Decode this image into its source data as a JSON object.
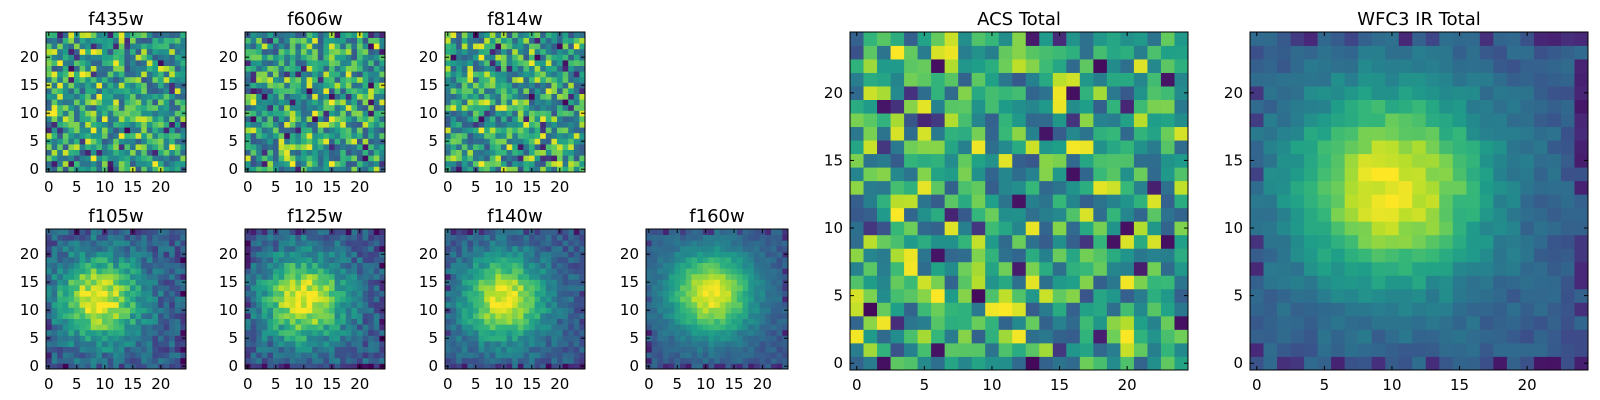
{
  "colors": {
    "colormap": "viridis",
    "stops": [
      "#440154",
      "#482878",
      "#3e4989",
      "#31688e",
      "#26828e",
      "#1f9e89",
      "#35b779",
      "#6ece58",
      "#b5de2b",
      "#fde725"
    ],
    "frame": "#000000",
    "background": "#ffffff"
  },
  "chart_data": [
    {
      "type": "heatmap",
      "title": "f435w",
      "grid_size": 25,
      "xlim": [
        -0.5,
        24.5
      ],
      "ylim": [
        -0.5,
        24.5
      ],
      "xticks": [
        0,
        5,
        10,
        15,
        20
      ],
      "yticks": [
        0,
        5,
        10,
        15,
        20
      ],
      "pattern": "noise",
      "noise_level": "high",
      "seed": 11
    },
    {
      "type": "heatmap",
      "title": "f606w",
      "grid_size": 25,
      "xlim": [
        -0.5,
        24.5
      ],
      "ylim": [
        -0.5,
        24.5
      ],
      "xticks": [
        0,
        5,
        10,
        15,
        20
      ],
      "yticks": [
        0,
        5,
        10,
        15,
        20
      ],
      "pattern": "noise",
      "noise_level": "high",
      "seed": 23
    },
    {
      "type": "heatmap",
      "title": "f814w",
      "grid_size": 25,
      "xlim": [
        -0.5,
        24.5
      ],
      "ylim": [
        -0.5,
        24.5
      ],
      "xticks": [
        0,
        5,
        10,
        15,
        20
      ],
      "yticks": [
        0,
        5,
        10,
        15,
        20
      ],
      "pattern": "noise",
      "noise_level": "high",
      "seed": 37
    },
    {
      "type": "heatmap",
      "title": "f105w",
      "grid_size": 25,
      "xlim": [
        -0.5,
        24.5
      ],
      "ylim": [
        -0.5,
        24.5
      ],
      "xticks": [
        0,
        5,
        10,
        15,
        20
      ],
      "yticks": [
        0,
        5,
        10,
        15,
        20
      ],
      "pattern": "source",
      "center": [
        9,
        12
      ],
      "noise_level": "medium",
      "seed": 41
    },
    {
      "type": "heatmap",
      "title": "f125w",
      "grid_size": 25,
      "xlim": [
        -0.5,
        24.5
      ],
      "ylim": [
        -0.5,
        24.5
      ],
      "xticks": [
        0,
        5,
        10,
        15,
        20
      ],
      "yticks": [
        0,
        5,
        10,
        15,
        20
      ],
      "pattern": "source",
      "center": [
        10,
        12
      ],
      "noise_level": "medium",
      "seed": 53
    },
    {
      "type": "heatmap",
      "title": "f140w",
      "grid_size": 25,
      "xlim": [
        -0.5,
        24.5
      ],
      "ylim": [
        -0.5,
        24.5
      ],
      "xticks": [
        0,
        5,
        10,
        15,
        20
      ],
      "yticks": [
        0,
        5,
        10,
        15,
        20
      ],
      "pattern": "source",
      "center": [
        10,
        12
      ],
      "noise_level": "low",
      "seed": 67
    },
    {
      "type": "heatmap",
      "title": "f160w",
      "grid_size": 25,
      "xlim": [
        -0.5,
        24.5
      ],
      "ylim": [
        -0.5,
        24.5
      ],
      "xticks": [
        0,
        5,
        10,
        15,
        20
      ],
      "yticks": [
        0,
        5,
        10,
        15,
        20
      ],
      "pattern": "source",
      "center": [
        11,
        13
      ],
      "noise_level": "very-low",
      "seed": 79
    },
    {
      "type": "heatmap",
      "title": "ACS Total",
      "grid_size": 25,
      "xlim": [
        -0.5,
        24.5
      ],
      "ylim": [
        -0.5,
        24.5
      ],
      "xticks": [
        0,
        5,
        10,
        15,
        20
      ],
      "yticks": [
        0,
        5,
        10,
        15,
        20
      ],
      "pattern": "noise",
      "noise_level": "high",
      "seed": 97
    },
    {
      "type": "heatmap",
      "title": "WFC3 IR Total",
      "grid_size": 25,
      "xlim": [
        -0.5,
        24.5
      ],
      "ylim": [
        -0.5,
        24.5
      ],
      "xticks": [
        0,
        5,
        10,
        15,
        20
      ],
      "yticks": [
        0,
        5,
        10,
        15,
        20
      ],
      "pattern": "source",
      "center": [
        10,
        13
      ],
      "noise_level": "very-low",
      "seed": 101
    }
  ]
}
